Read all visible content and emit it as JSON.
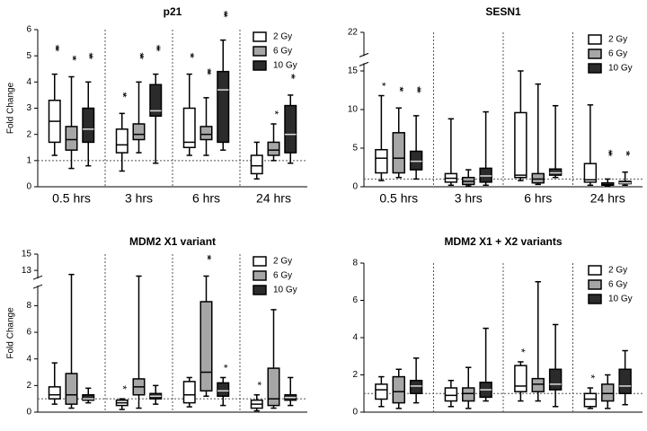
{
  "chart_data": [
    {
      "type": "box",
      "title": "p21",
      "ylabel": "Fold Change",
      "categories": [
        "0.5 hrs",
        "3 hrs",
        "6 hrs",
        "24 hrs"
      ],
      "ylim": [
        0,
        6
      ],
      "yticks": [
        0,
        1,
        2,
        3,
        4,
        5,
        6
      ],
      "refline": 1,
      "series": [
        {
          "name": "2 Gy",
          "color": "#ffffff",
          "min": [
            1.2,
            0.6,
            1.2,
            0.3
          ],
          "q1": [
            1.7,
            1.3,
            1.5,
            0.5
          ],
          "median": [
            2.5,
            1.6,
            1.7,
            0.8
          ],
          "q3": [
            3.3,
            2.2,
            3.0,
            1.2
          ],
          "max": [
            4.3,
            2.8,
            4.3,
            1.7
          ],
          "stars": [
            "***",
            "**",
            "**",
            null
          ]
        },
        {
          "name": "6 Gy",
          "color": "#a6a6a6",
          "min": [
            0.7,
            1.3,
            1.2,
            1.0
          ],
          "q1": [
            1.4,
            1.8,
            1.8,
            1.2
          ],
          "median": [
            1.8,
            2.0,
            2.0,
            1.4
          ],
          "q3": [
            2.3,
            2.4,
            2.3,
            1.7
          ],
          "max": [
            4.2,
            4.0,
            3.4,
            2.4
          ],
          "stars": [
            "**",
            "***",
            "***",
            "*"
          ]
        },
        {
          "name": "10 Gy",
          "color": "#2b2b2b",
          "min": [
            0.8,
            0.9,
            1.4,
            0.9
          ],
          "q1": [
            1.7,
            2.7,
            1.7,
            1.3
          ],
          "median": [
            2.2,
            2.9,
            3.7,
            2.0
          ],
          "q3": [
            3.0,
            3.9,
            4.4,
            3.1
          ],
          "max": [
            4.0,
            4.3,
            5.6,
            3.5
          ],
          "stars": [
            "***",
            "***",
            "***",
            "**"
          ]
        }
      ]
    },
    {
      "type": "box",
      "title": "SESN1",
      "categories": [
        "0.5 hrs",
        "3 hrs",
        "6 hrs",
        "24 hrs"
      ],
      "ylim": [
        0,
        22
      ],
      "ybreak": [
        16,
        21
      ],
      "yticks": [
        0,
        5,
        10,
        15,
        22
      ],
      "refline": 1,
      "series": [
        {
          "name": "2 Gy",
          "color": "#ffffff",
          "min": [
            0.8,
            0.2,
            0.8,
            0.2
          ],
          "q1": [
            1.8,
            0.6,
            1.2,
            0.6
          ],
          "median": [
            3.7,
            1.1,
            1.5,
            0.9
          ],
          "q3": [
            4.8,
            1.7,
            9.6,
            3.0
          ],
          "max": [
            11.8,
            8.8,
            15,
            10.6
          ],
          "stars": [
            "*",
            null,
            null,
            null
          ]
        },
        {
          "name": "6 Gy",
          "color": "#a6a6a6",
          "min": [
            1.2,
            0.1,
            0.3,
            0.1
          ],
          "q1": [
            1.8,
            0.3,
            0.5,
            0.2
          ],
          "median": [
            3.7,
            0.7,
            1,
            0.3
          ],
          "q3": [
            7,
            1.2,
            1.7,
            0.5
          ],
          "max": [
            10.2,
            2.2,
            13.3,
            1.0
          ],
          "stars": [
            "**",
            null,
            null,
            "***"
          ]
        },
        {
          "name": "10 Gy",
          "color": "#2b2b2b",
          "min": [
            1.0,
            0.2,
            1.2,
            0.2
          ],
          "q1": [
            2.2,
            0.6,
            1.5,
            0.4
          ],
          "median": [
            3.3,
            1.4,
            1.8,
            0.5
          ],
          "q3": [
            4.6,
            2.4,
            2.3,
            0.7
          ],
          "max": [
            9.2,
            9.7,
            10.5,
            1.9
          ],
          "stars": [
            "***",
            null,
            null,
            "**"
          ]
        }
      ]
    },
    {
      "type": "box",
      "title": "MDM2 X1 variant",
      "ylabel": "Fold Change",
      "categories": [
        null,
        null,
        null,
        null
      ],
      "ylim": [
        0,
        15
      ],
      "ybreak": [
        9.5,
        12
      ],
      "yticks": [
        0,
        2,
        4,
        6,
        8,
        13,
        15
      ],
      "refline": 1,
      "series": [
        {
          "name": "2 Gy",
          "color": "#ffffff",
          "min": [
            0.6,
            0.2,
            0.4,
            0.1
          ],
          "q1": [
            1,
            0.5,
            0.7,
            0.3
          ],
          "median": [
            1.3,
            0.7,
            1.3,
            0.6
          ],
          "q3": [
            1.9,
            0.9,
            2.3,
            0.9
          ],
          "max": [
            3.7,
            1.0,
            2.6,
            1.3
          ],
          "stars": [
            null,
            "*",
            null,
            "*"
          ]
        },
        {
          "name": "6 Gy",
          "color": "#a6a6a6",
          "min": [
            0.3,
            0.3,
            1.2,
            0.3
          ],
          "q1": [
            0.6,
            1.3,
            1.6,
            0.5
          ],
          "median": [
            1.3,
            1.9,
            3.0,
            1.0
          ],
          "q3": [
            2.9,
            2.5,
            8.3,
            3.3
          ],
          "max": [
            12.5,
            12.3,
            12.3,
            7.7
          ],
          "stars": [
            null,
            null,
            "**",
            null
          ]
        },
        {
          "name": "10 Gy",
          "color": "#2b2b2b",
          "min": [
            0.7,
            0.6,
            0.5,
            0.5
          ],
          "q1": [
            0.9,
            1.0,
            1.2,
            0.9
          ],
          "median": [
            1.0,
            1.2,
            1.6,
            1.1
          ],
          "q3": [
            1.3,
            1.4,
            2.2,
            1.3
          ],
          "max": [
            1.8,
            2.0,
            2.6,
            2.6
          ],
          "stars": [
            null,
            null,
            "*",
            null
          ]
        }
      ]
    },
    {
      "type": "box",
      "title": "MDM2 X1 + X2 variants",
      "categories": [
        null,
        null,
        null,
        null
      ],
      "ylim": [
        0,
        8
      ],
      "yticks": [
        0,
        2,
        4,
        6,
        8
      ],
      "refline": 1,
      "series": [
        {
          "name": "2 Gy",
          "color": "#ffffff",
          "min": [
            0.3,
            0.3,
            0.6,
            0.2
          ],
          "q1": [
            0.7,
            0.6,
            1.1,
            0.3
          ],
          "median": [
            1.2,
            0.9,
            1.4,
            0.7
          ],
          "q3": [
            1.5,
            1.3,
            2.5,
            1.0
          ],
          "max": [
            1.9,
            1.7,
            2.7,
            1.3
          ],
          "stars": [
            null,
            null,
            "*",
            "*"
          ]
        },
        {
          "name": "6 Gy",
          "color": "#a6a6a6",
          "min": [
            0.2,
            0.2,
            0.6,
            0.2
          ],
          "q1": [
            0.5,
            0.6,
            1.1,
            0.6
          ],
          "median": [
            1.1,
            1.0,
            1.5,
            1.0
          ],
          "q3": [
            1.9,
            1.3,
            1.8,
            1.5
          ],
          "max": [
            2.3,
            2.4,
            7.0,
            2.0
          ],
          "stars": [
            null,
            null,
            null,
            null
          ]
        },
        {
          "name": "10 Gy",
          "color": "#2b2b2b",
          "min": [
            0.5,
            0.6,
            0.3,
            0.4
          ],
          "q1": [
            1.0,
            0.8,
            1.2,
            1.0
          ],
          "median": [
            1.4,
            1.2,
            1.5,
            1.4
          ],
          "q3": [
            1.7,
            1.6,
            2.3,
            2.3
          ],
          "max": [
            2.9,
            4.5,
            4.7,
            3.3
          ],
          "stars": [
            null,
            null,
            null,
            null
          ]
        }
      ]
    }
  ]
}
